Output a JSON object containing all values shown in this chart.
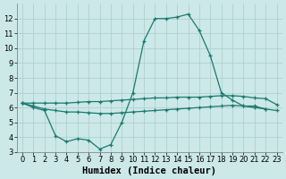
{
  "xlabel": "Humidex (Indice chaleur)",
  "x": [
    0,
    1,
    2,
    3,
    4,
    5,
    6,
    7,
    8,
    9,
    10,
    11,
    12,
    13,
    14,
    15,
    16,
    17,
    18,
    19,
    20,
    21,
    22,
    23
  ],
  "line_main": [
    6.3,
    6.0,
    5.8,
    4.1,
    3.7,
    3.9,
    3.8,
    3.2,
    3.5,
    5.0,
    7.0,
    10.5,
    12.0,
    12.0,
    12.1,
    12.3,
    11.2,
    9.5,
    7.0,
    6.5,
    6.1,
    6.1,
    5.9,
    null
  ],
  "line_upper": [
    6.3,
    6.3,
    6.3,
    6.3,
    6.3,
    6.35,
    6.4,
    6.4,
    6.45,
    6.5,
    6.55,
    6.6,
    6.65,
    6.65,
    6.7,
    6.7,
    6.7,
    6.75,
    6.8,
    6.8,
    6.75,
    6.65,
    6.6,
    6.2
  ],
  "line_lower": [
    6.3,
    6.1,
    5.9,
    5.8,
    5.7,
    5.7,
    5.65,
    5.6,
    5.6,
    5.65,
    5.7,
    5.75,
    5.8,
    5.85,
    5.9,
    5.95,
    6.0,
    6.05,
    6.1,
    6.15,
    6.1,
    6.0,
    5.9,
    5.8
  ],
  "line_color": "#1a7a6e",
  "bg_color": "#cce8e8",
  "grid_color": "#aacccc",
  "ylim": [
    3,
    13
  ],
  "xlim_min": -0.5,
  "xlim_max": 23.5,
  "yticks": [
    3,
    4,
    5,
    6,
    7,
    8,
    9,
    10,
    11,
    12
  ],
  "xticks": [
    0,
    1,
    2,
    3,
    4,
    5,
    6,
    7,
    8,
    9,
    10,
    11,
    12,
    13,
    14,
    15,
    16,
    17,
    18,
    19,
    20,
    21,
    22,
    23
  ],
  "tick_fontsize": 6,
  "label_fontsize": 7.5
}
